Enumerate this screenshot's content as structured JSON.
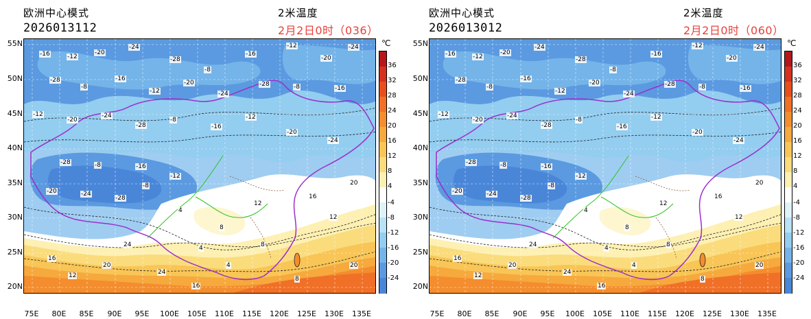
{
  "panels": [
    {
      "model": "欧洲中心模式",
      "run": "2026013112",
      "variable": "2米温度",
      "valid": "2月2日0时（036）"
    },
    {
      "model": "欧洲中心模式",
      "run": "2026013012",
      "variable": "2米温度",
      "valid": "2月2日0时（060）"
    }
  ],
  "axes": {
    "lat_labels": [
      "55N",
      "50N",
      "45N",
      "40N",
      "35N",
      "30N",
      "25N",
      "20N"
    ],
    "lon_labels": [
      "75E",
      "80E",
      "85E",
      "90E",
      "95E",
      "100E",
      "105E",
      "110E",
      "115E",
      "120E",
      "125E",
      "130E",
      "135E"
    ]
  },
  "colorbar": {
    "unit": "℃",
    "labels": [
      "36",
      "32",
      "28",
      "24",
      "20",
      "16",
      "12",
      "8",
      "4",
      "-4",
      "-8",
      "-12",
      "-16",
      "-20",
      "-24"
    ],
    "colors": [
      "#b5171b",
      "#d7301f",
      "#e84f1c",
      "#f07027",
      "#f48d2e",
      "#f6a93d",
      "#f8c556",
      "#fadc7d",
      "#fdf0b2",
      "#ffffff",
      "#dff2fa",
      "#b8e2f6",
      "#93cdf0",
      "#74b4e9",
      "#5b9ae0",
      "#4a86d8"
    ]
  },
  "contour_labels": {
    "cold": [
      "-16",
      "-12",
      "-20",
      "-24",
      "-28",
      "-8"
    ],
    "warm": [
      "4",
      "8",
      "12",
      "16",
      "20",
      "24"
    ]
  }
}
